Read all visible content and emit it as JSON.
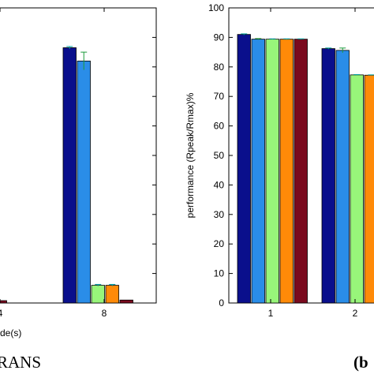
{
  "chart_data": [
    {
      "type": "bar",
      "panel_caption": "RANS",
      "x_categories": [
        "4",
        "8"
      ],
      "xlabel_partial": "de(s)",
      "colors": [
        "#0a0f8c",
        "#2a8de8",
        "#98f57a",
        "#ff8a08",
        "#7a0a1e"
      ],
      "series_values": [
        {
          "values": [
            null,
            86.5
          ]
        },
        {
          "values": [
            null,
            82.0
          ]
        },
        {
          "values": [
            2.6,
            6.0
          ]
        },
        {
          "values": [
            3.5,
            6.0
          ]
        },
        {
          "values": [
            0.8,
            1.0
          ]
        }
      ],
      "errors": [
        {
          "values": [
            null,
            0.4
          ]
        },
        {
          "values": [
            null,
            3.0
          ]
        },
        {
          "values": [
            0,
            0.3
          ]
        },
        {
          "values": [
            0.2,
            0.3
          ]
        },
        {
          "values": [
            0,
            0
          ]
        }
      ],
      "ylim": [
        0,
        100
      ],
      "grid": false
    },
    {
      "type": "bar",
      "panel_caption": "(b",
      "ylabel": "performance (Rpeak/Rmax)%",
      "yticks": [
        "0",
        "10",
        "20",
        "30",
        "40",
        "50",
        "60",
        "70",
        "80",
        "90",
        "100"
      ],
      "ylim": [
        0,
        100
      ],
      "x_categories": [
        "1",
        "2"
      ],
      "colors": [
        "#0a0f8c",
        "#2a8de8",
        "#98f57a",
        "#ff8a08",
        "#7a0a1e"
      ],
      "series_values": [
        {
          "values": [
            91.0,
            86.2
          ]
        },
        {
          "values": [
            89.4,
            85.6
          ]
        },
        {
          "values": [
            89.4,
            77.3
          ]
        },
        {
          "values": [
            89.4,
            77.2
          ]
        },
        {
          "values": [
            89.4,
            null
          ]
        }
      ],
      "errors": [
        {
          "values": [
            0.2,
            0.2
          ]
        },
        {
          "values": [
            0.2,
            0.8
          ]
        },
        {
          "values": [
            0.1,
            0.1
          ]
        },
        {
          "values": [
            0.1,
            0.1
          ]
        },
        {
          "values": [
            0.1,
            null
          ]
        }
      ],
      "grid": false
    }
  ]
}
